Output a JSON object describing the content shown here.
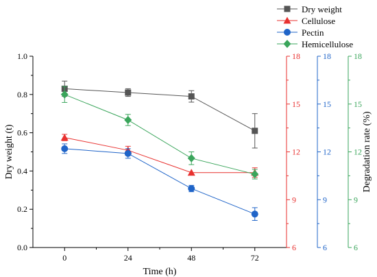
{
  "chart_data": {
    "type": "line",
    "x": [
      0,
      24,
      48,
      72
    ],
    "xlabel": "Time (h)",
    "xticks": [
      "0",
      "24",
      "48",
      "72"
    ],
    "xlim": [
      -12,
      84
    ],
    "axes": [
      {
        "id": "dry",
        "label": "Dry weight (t)",
        "side": "left",
        "color": "#000000",
        "ylim": [
          0,
          1
        ],
        "ticks": [
          "0.0",
          "0.2",
          "0.4",
          "0.6",
          "0.8",
          "1.0"
        ]
      },
      {
        "id": "cel",
        "label": "",
        "side": "right",
        "color": "#e8312f",
        "ylim": [
          6,
          18
        ],
        "ticks": [
          "6",
          "9",
          "12",
          "15",
          "18"
        ]
      },
      {
        "id": "pec",
        "label": "",
        "side": "right",
        "color": "#1f64c8",
        "ylim": [
          6,
          18
        ],
        "ticks": [
          "6",
          "9",
          "12",
          "15",
          "18"
        ]
      },
      {
        "id": "hem",
        "label": "Degradation rate (%)",
        "side": "right",
        "color": "#3aa55b",
        "ylim": [
          6,
          18
        ],
        "ticks": [
          "6",
          "9",
          "12",
          "15",
          "18"
        ]
      }
    ],
    "series": [
      {
        "name": "Dry weight",
        "axis": "dry",
        "color": "#555555",
        "marker": "square",
        "values": [
          0.83,
          0.81,
          0.79,
          0.61
        ],
        "errors": [
          0.04,
          0.02,
          0.03,
          0.09
        ]
      },
      {
        "name": "Cellulose",
        "axis": "cel",
        "color": "#e8312f",
        "marker": "triangle",
        "values": [
          12.9,
          12.1,
          10.7,
          10.7
        ],
        "errors": [
          0.2,
          0.25,
          0.0,
          0.3
        ]
      },
      {
        "name": "Pectin",
        "axis": "pec",
        "color": "#1f64c8",
        "marker": "circle",
        "values": [
          12.2,
          11.9,
          9.7,
          8.1
        ],
        "errors": [
          0.3,
          0.3,
          0.2,
          0.4
        ]
      },
      {
        "name": "Hemicellulose",
        "axis": "hem",
        "color": "#3aa55b",
        "marker": "diamond",
        "values": [
          15.6,
          14.0,
          11.6,
          10.6
        ],
        "errors": [
          0.5,
          0.35,
          0.4,
          0.3
        ]
      }
    ],
    "legend": "top-right"
  }
}
